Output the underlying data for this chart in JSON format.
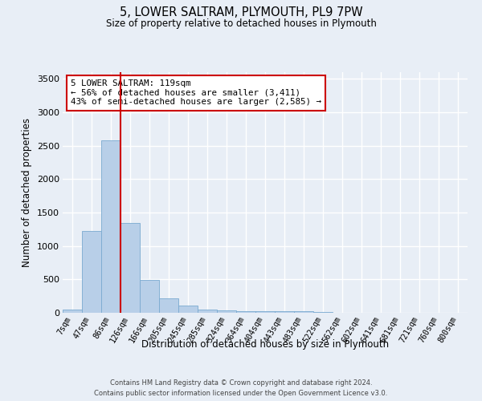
{
  "title": "5, LOWER SALTRAM, PLYMOUTH, PL9 7PW",
  "subtitle": "Size of property relative to detached houses in Plymouth",
  "xlabel": "Distribution of detached houses by size in Plymouth",
  "ylabel": "Number of detached properties",
  "categories": [
    "7sqm",
    "47sqm",
    "86sqm",
    "126sqm",
    "166sqm",
    "205sqm",
    "245sqm",
    "285sqm",
    "324sqm",
    "364sqm",
    "404sqm",
    "443sqm",
    "483sqm",
    "522sqm",
    "562sqm",
    "602sqm",
    "641sqm",
    "681sqm",
    "721sqm",
    "760sqm",
    "800sqm"
  ],
  "values": [
    50,
    1230,
    2580,
    1340,
    495,
    215,
    105,
    50,
    40,
    30,
    25,
    20,
    30,
    15,
    0,
    0,
    0,
    0,
    0,
    0,
    0
  ],
  "bar_color": "#b8cfe8",
  "bar_edge_color": "#7aaad0",
  "property_bin_index": 2,
  "vline_color": "#cc0000",
  "annotation_text": "5 LOWER SALTRAM: 119sqm\n← 56% of detached houses are smaller (3,411)\n43% of semi-detached houses are larger (2,585) →",
  "annotation_box_edge_color": "#cc0000",
  "annotation_box_face_color": "#ffffff",
  "bg_color": "#e8eef6",
  "plot_bg_color": "#e8eef6",
  "grid_color": "#ffffff",
  "ylim": [
    0,
    3600
  ],
  "yticks": [
    0,
    500,
    1000,
    1500,
    2000,
    2500,
    3000,
    3500
  ],
  "footer_line1": "Contains HM Land Registry data © Crown copyright and database right 2024.",
  "footer_line2": "Contains public sector information licensed under the Open Government Licence v3.0."
}
